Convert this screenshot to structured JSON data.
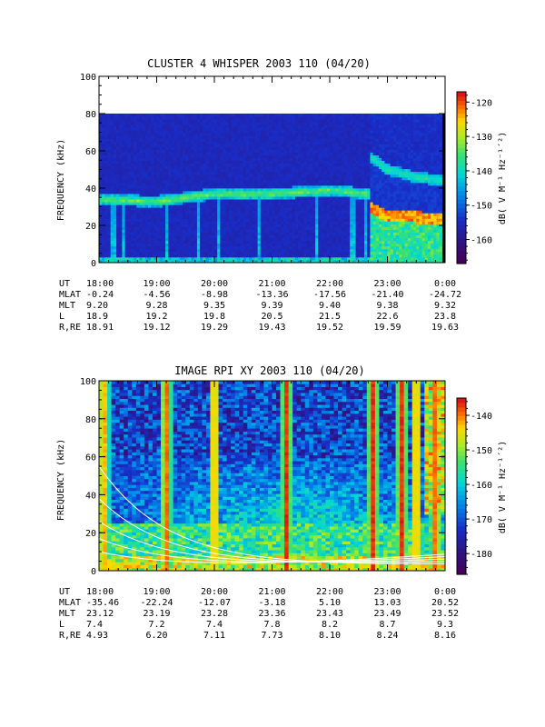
{
  "chart_data": [
    {
      "type": "heatmap",
      "title": "CLUSTER 4 WHISPER 2003 110 (04/20)",
      "ylabel": "FREQUENCY (kHz)",
      "ylim": [
        0,
        100
      ],
      "yticks": [
        "0",
        "20",
        "40",
        "60",
        "80",
        "100"
      ],
      "data_freq_max_khz": 80,
      "colorbar": {
        "label": "dB( V M⁻¹ Hz⁻¹´²)",
        "range": [
          -167,
          -117
        ],
        "ticks": [
          "-120",
          "-130",
          "-140",
          "-150",
          "-160"
        ]
      },
      "features": {
        "emission_band_khz": [
          {
            "time": "18:00",
            "freq": 34
          },
          {
            "time": "19:00",
            "freq": 33
          },
          {
            "time": "20:00",
            "freq": 37
          },
          {
            "time": "21:00",
            "freq": 37
          },
          {
            "time": "22:00",
            "freq": 39
          },
          {
            "time": "22:40",
            "freq": 37
          }
        ],
        "upper_band_khz": [
          {
            "time": "22:45",
            "freq": 56
          },
          {
            "time": "23:00",
            "freq": 50
          },
          {
            "time": "23:30",
            "freq": 46
          },
          {
            "time": "0:00",
            "freq": 44
          }
        ],
        "lower_band_khz": [
          {
            "time": "22:45",
            "freq": 30
          },
          {
            "time": "23:00",
            "freq": 26
          },
          {
            "time": "0:00",
            "freq": 25
          }
        ]
      },
      "ephemeris": {
        "row_labels": [
          "UT",
          "MLAT",
          "MLT",
          "L",
          "R,RE"
        ],
        "UT": [
          "18:00",
          "19:00",
          "20:00",
          "21:00",
          "22:00",
          "23:00",
          "0:00"
        ],
        "MLAT": [
          "-0.24",
          "-4.56",
          "-8.98",
          "-13.36",
          "-17.56",
          "-21.40",
          "-24.72"
        ],
        "MLT": [
          "9.20",
          "9.28",
          "9.35",
          "9.39",
          "9.40",
          "9.38",
          "9.32"
        ],
        "L": [
          "18.9",
          "19.2",
          "19.8",
          "20.5",
          "21.5",
          "22.6",
          "23.8"
        ],
        "R,RE": [
          "18.91",
          "19.12",
          "19.29",
          "19.43",
          "19.52",
          "19.59",
          "19.63"
        ]
      }
    },
    {
      "type": "heatmap",
      "title": "IMAGE RPI XY 2003 110 (04/20)",
      "ylabel": "FREQUENCY (kHz)",
      "ylim": [
        0,
        100
      ],
      "yticks": [
        "0",
        "20",
        "40",
        "60",
        "80",
        "100"
      ],
      "colorbar": {
        "label": "dB( V M⁻¹ Hz⁻¹´²)",
        "range": [
          -186,
          -135
        ],
        "ticks": [
          "-140",
          "-150",
          "-160",
          "-170",
          "-180"
        ]
      },
      "features": {
        "bright_columns": [
          "18:05",
          "19:10",
          "20:00",
          "21:15",
          "22:45",
          "23:15",
          "23:30",
          "23:50"
        ],
        "white_curves_start_khz": [
          55,
          38,
          26,
          17,
          10
        ]
      },
      "ephemeris": {
        "row_labels": [
          "UT",
          "MLAT",
          "MLT",
          "L",
          "R,RE"
        ],
        "UT": [
          "18:00",
          "19:00",
          "20:00",
          "21:00",
          "22:00",
          "23:00",
          "0:00"
        ],
        "MLAT": [
          "-35.46",
          "-22.24",
          "-12.07",
          "-3.18",
          "5.10",
          "13.03",
          "20.52"
        ],
        "MLT": [
          "23.12",
          "23.19",
          "23.28",
          "23.36",
          "23.43",
          "23.49",
          "23.52"
        ],
        "L": [
          "7.4",
          "7.2",
          "7.4",
          "7.8",
          "8.2",
          "8.7",
          "9.3"
        ],
        "R,RE": [
          "4.93",
          "6.20",
          "7.11",
          "7.73",
          "8.10",
          "8.24",
          "8.16"
        ]
      }
    }
  ]
}
